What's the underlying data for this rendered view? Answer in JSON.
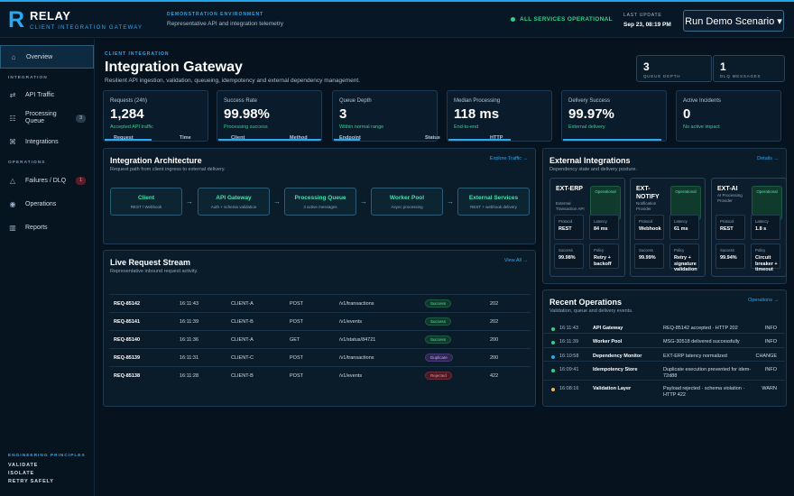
{
  "header": {
    "logo_letter": "R",
    "app_name": "RELAY",
    "app_subtitle": "CLIENT INTEGRATION GATEWAY",
    "env_label": "DEMONSTRATION ENVIRONMENT",
    "env_text": "Representative API and integration telemetry",
    "status_text": "ALL SERVICES OPERATIONAL",
    "update_label": "LAST UPDATE",
    "update_value": "Sep 23, 08:19 PM",
    "run_button": "Run Demo Scenario ▾"
  },
  "sidebar": {
    "overview": "Overview",
    "section_integration": "INTEGRATION",
    "api_traffic": "API Traffic",
    "processing_queue": "Processing Queue",
    "processing_queue_badge": "3",
    "integrations": "Integrations",
    "section_operations": "OPERATIONS",
    "failures": "Failures / DLQ",
    "failures_badge": "1",
    "operations": "Operations",
    "reports": "Reports",
    "principles_label": "ENGINEERING PRINCIPLES",
    "principles": [
      "VALIDATE",
      "ISOLATE",
      "RETRY SAFELY"
    ]
  },
  "page": {
    "kicker": "CLIENT INTEGRATION",
    "title": "Integration Gateway",
    "subtitle": "Resilient API ingestion, validation, queueing, idempotency and external dependency management.",
    "queue_depth_value": "3",
    "queue_depth_label": "QUEUE DEPTH",
    "dlq_value": "1",
    "dlq_label": "DLQ MESSAGES"
  },
  "kpis": [
    {
      "label": "Requests (24h)",
      "value": "1,284",
      "sub": "Accepted API traffic",
      "bar": 0.45
    },
    {
      "label": "Success Rate",
      "value": "99.98%",
      "sub": "Processing success",
      "bar": 0.99
    },
    {
      "label": "Queue Depth",
      "value": "3",
      "sub": "Within normal range",
      "bar": 0.25
    },
    {
      "label": "Median Processing",
      "value": "118 ms",
      "sub": "End-to-end",
      "bar": 0.6
    },
    {
      "label": "Delivery Success",
      "value": "99.97%",
      "sub": "External delivery",
      "bar": 0.95
    },
    {
      "label": "Active Incidents",
      "value": "0",
      "sub": "No active impact",
      "bar": 0
    }
  ],
  "architecture": {
    "title": "Integration Architecture",
    "subtitle": "Request path from client ingress to external delivery.",
    "link": "Explore Traffic →",
    "nodes": [
      {
        "name": "Client",
        "desc": "REST / Webhook"
      },
      {
        "name": "API Gateway",
        "desc": "Auth + schema validation"
      },
      {
        "name": "Processing Queue",
        "desc": "3 active messages"
      },
      {
        "name": "Worker Pool",
        "desc": "Async processing"
      },
      {
        "name": "External Services",
        "desc": "REST + webhook delivery"
      }
    ],
    "arrow": "→"
  },
  "stream": {
    "title": "Live Request Stream",
    "subtitle": "Representative inbound request activity.",
    "link": "View All →",
    "columns": [
      "Request",
      "Time",
      "Client",
      "Method",
      "Endpoint",
      "Status",
      "HTTP"
    ],
    "rows": [
      {
        "request": "REQ-85142",
        "time": "16:11:43",
        "client": "CLIENT-A",
        "method": "POST",
        "endpoint": "/v1/transactions",
        "status": "Success",
        "http": "202"
      },
      {
        "request": "REQ-85141",
        "time": "16:11:39",
        "client": "CLIENT-B",
        "method": "POST",
        "endpoint": "/v1/events",
        "status": "Success",
        "http": "202"
      },
      {
        "request": "REQ-85140",
        "time": "16:11:36",
        "client": "CLIENT-A",
        "method": "GET",
        "endpoint": "/v1/status/84721",
        "status": "Success",
        "http": "200"
      },
      {
        "request": "REQ-85139",
        "time": "16:11:31",
        "client": "CLIENT-C",
        "method": "POST",
        "endpoint": "/v1/transactions",
        "status": "Duplicate",
        "http": "200"
      },
      {
        "request": "REQ-85138",
        "time": "16:11:28",
        "client": "CLIENT-B",
        "method": "POST",
        "endpoint": "/v1/events",
        "status": "Rejected",
        "http": "422"
      }
    ]
  },
  "external": {
    "title": "External Integrations",
    "subtitle": "Dependency state and delivery posture.",
    "link": "Details →",
    "cards": [
      {
        "name": "EXT-ERP",
        "desc": "External Transaction API",
        "badge": "Operational",
        "protocol_label": "Protocol",
        "protocol": "REST",
        "latency_label": "Latency",
        "latency": "84 ms",
        "success_label": "Success",
        "success": "99.98%",
        "policy_label": "Policy",
        "policy": "Retry + backoff"
      },
      {
        "name": "EXT-NOTIFY",
        "desc": "Notification Provider",
        "badge": "Operational",
        "protocol_label": "Protocol",
        "protocol": "Webhook",
        "latency_label": "Latency",
        "latency": "61 ms",
        "success_label": "Success",
        "success": "99.99%",
        "policy_label": "Policy",
        "policy": "Retry + signature validation"
      },
      {
        "name": "EXT-AI",
        "desc": "AI Processing Provider",
        "badge": "Operational",
        "protocol_label": "Protocol",
        "protocol": "REST",
        "latency_label": "Latency",
        "latency": "1.8 s",
        "success_label": "Success",
        "success": "99.94%",
        "policy_label": "Policy",
        "policy": "Circuit breaker + timeout"
      }
    ]
  },
  "operations": {
    "title": "Recent Operations",
    "subtitle": "Validation, queue and delivery events.",
    "link": "Operations →",
    "rows": [
      {
        "time": "16:11:43",
        "source": "API Gateway",
        "message": "REQ-85142 accepted · HTTP 202",
        "level": "INFO",
        "color": "#2fd28a"
      },
      {
        "time": "16:11:39",
        "source": "Worker Pool",
        "message": "MSG-30518 delivered successfully",
        "level": "INFO",
        "color": "#2fd28a"
      },
      {
        "time": "16:10:58",
        "source": "Dependency Monitor",
        "message": "EXT-ERP latency normalized",
        "level": "CHANGE",
        "color": "#2ba8f0"
      },
      {
        "time": "16:09:41",
        "source": "Idempotency Store",
        "message": "Duplicate execution prevented for idem-72d88",
        "level": "INFO",
        "color": "#2fd28a"
      },
      {
        "time": "16:08:16",
        "source": "Validation Layer",
        "message": "Payload rejected · schema violation · HTTP 422",
        "level": "WARN",
        "color": "#f2b84b"
      }
    ]
  },
  "colors": {
    "accent": "#2ba8f0",
    "success": "#2fd28a",
    "background": "#06131f"
  }
}
